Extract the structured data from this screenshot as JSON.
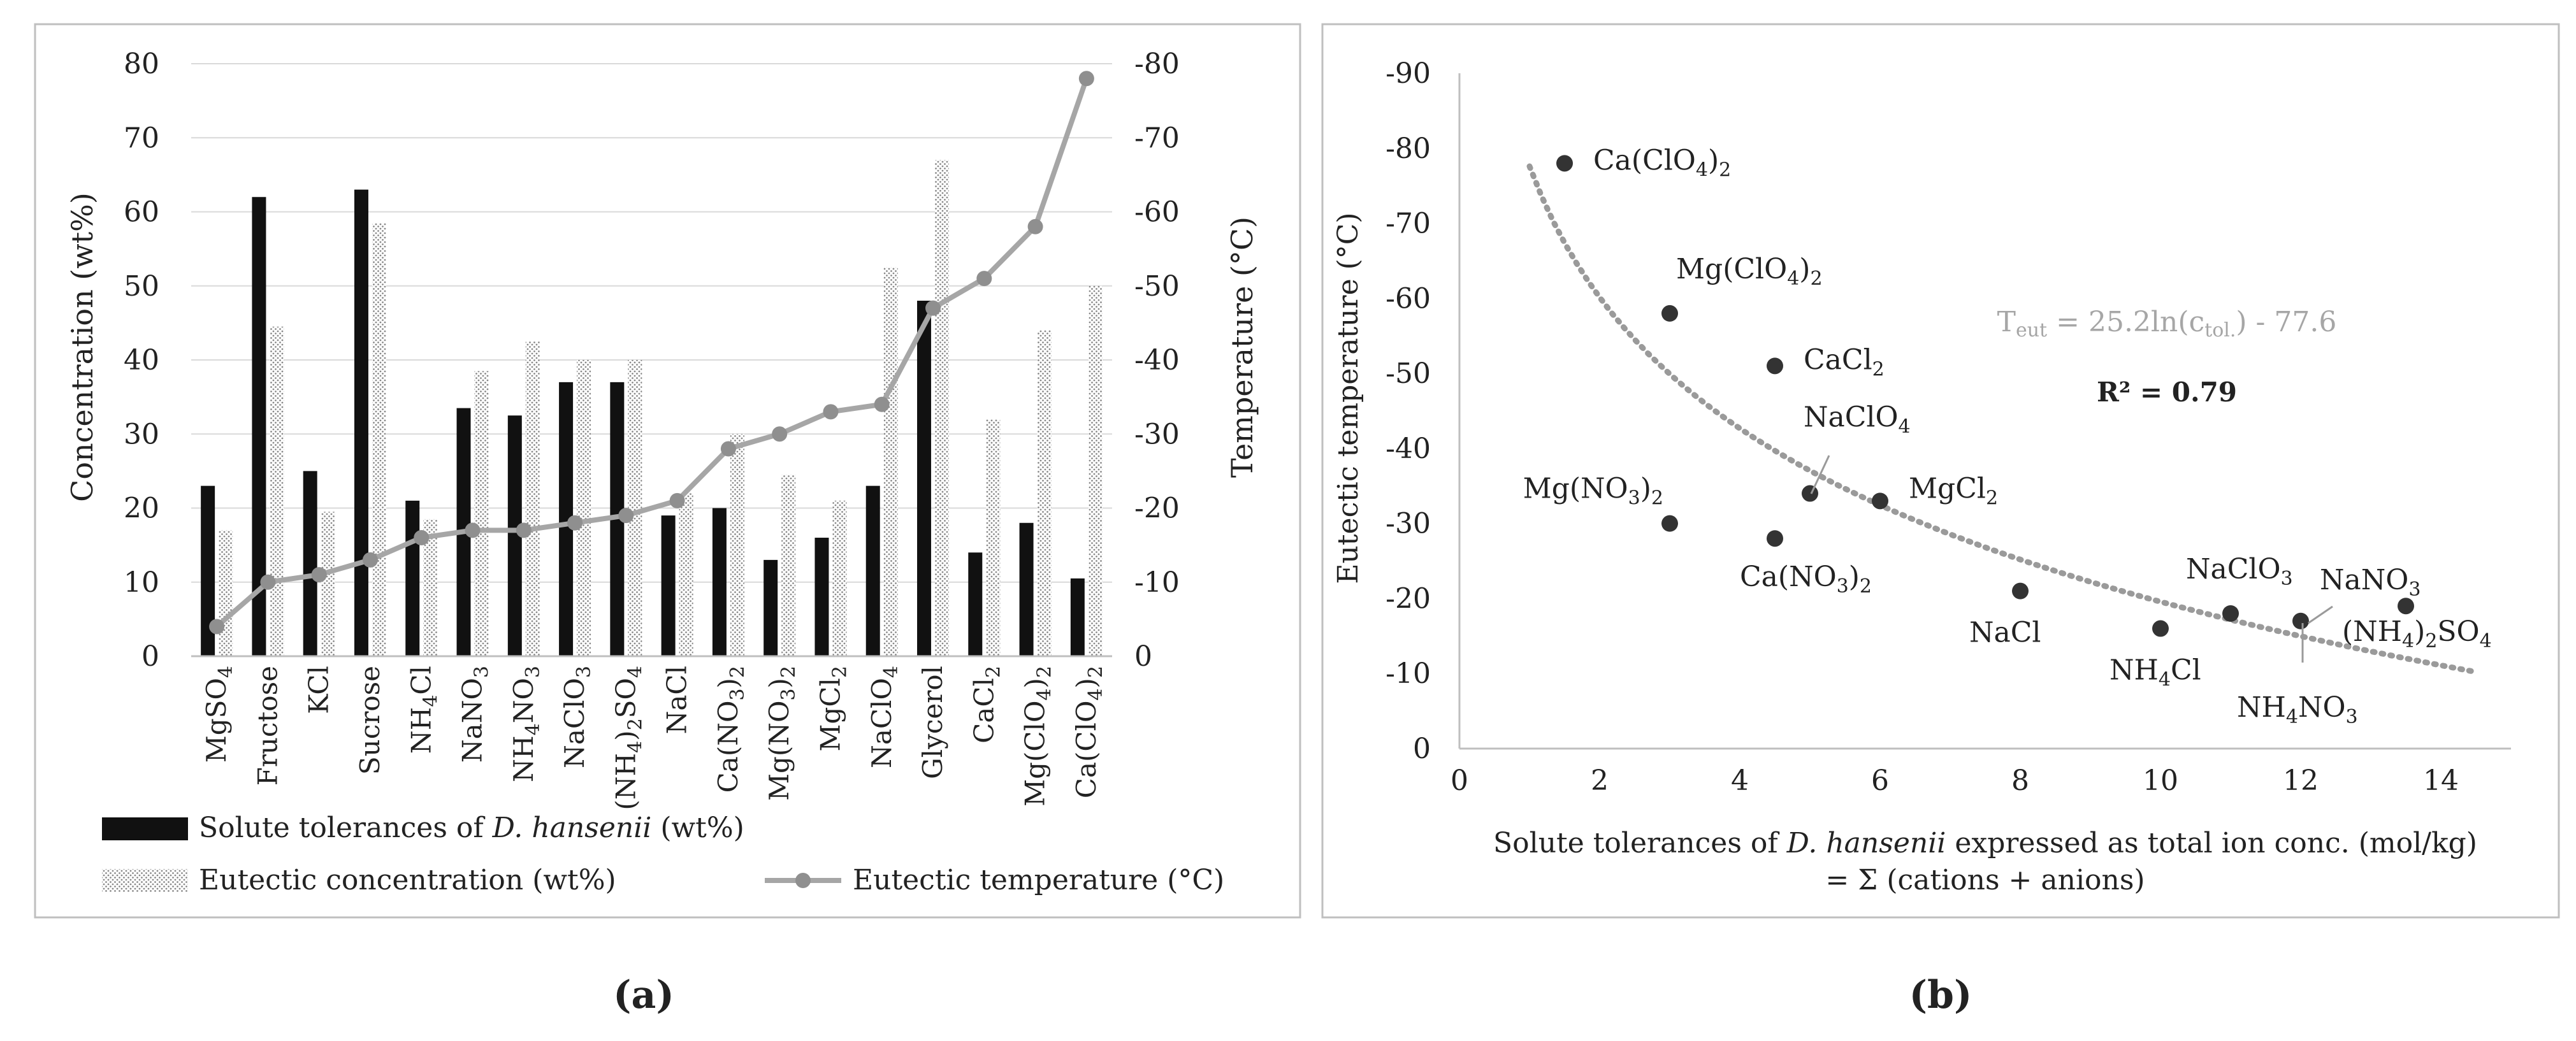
{
  "panel_a": {
    "label": "(a)",
    "chart_data": {
      "type": "bar",
      "title": "",
      "xlabel": "",
      "ylabel_left": "Concentration (wt%)",
      "ylabel_right": "Temperature (°C)",
      "ylim_left": [
        0,
        80
      ],
      "ylim_right": [
        0,
        -80
      ],
      "yticks_left": [
        "0",
        "10",
        "20",
        "30",
        "40",
        "50",
        "60",
        "70",
        "80"
      ],
      "yticks_right": [
        "0",
        "-10",
        "-20",
        "-30",
        "-40",
        "-50",
        "-60",
        "-70",
        "-80"
      ],
      "categories": [
        "MgSO4",
        "Fructose",
        "KCl",
        "Sucrose",
        "NH4Cl",
        "NaNO3",
        "NH4NO3",
        "NaClO3",
        "(NH4)2SO4",
        "NaCl",
        "Ca(NO3)2",
        "Mg(NO3)2",
        "MgCl2",
        "NaClO4",
        "Glycerol",
        "CaCl2",
        "Mg(ClO4)2",
        "Ca(ClO4)2"
      ],
      "series": [
        {
          "name": "Solute tolerances of D. hansenii (wt%)",
          "kind": "bar",
          "color": "#111111",
          "axis": "left",
          "values": [
            23,
            62,
            25,
            63,
            21,
            33.5,
            32.5,
            37,
            37,
            19,
            20,
            13,
            16,
            23,
            48,
            14,
            18,
            10.5
          ]
        },
        {
          "name": "Eutectic concentration (wt%)",
          "kind": "bar",
          "color": "#bdbdbd",
          "pattern": "dotted",
          "axis": "left",
          "values": [
            17,
            44.5,
            19.5,
            58.5,
            18.5,
            38.5,
            42.5,
            40,
            40,
            22,
            30,
            24.5,
            21,
            52.5,
            67,
            32,
            44,
            50
          ]
        },
        {
          "name": "Eutectic temperature (°C)",
          "kind": "line",
          "color": "#a6a6a6",
          "axis": "right",
          "values": [
            -4,
            -10,
            -11,
            -13,
            -16,
            -17,
            -17,
            -18,
            -19,
            -21,
            -28,
            -30,
            -33,
            -34,
            -47,
            -51,
            -58,
            -78
          ]
        }
      ],
      "legend": {
        "solute_prefix": "Solute tolerances of ",
        "solute_species": "D. hansenii",
        "solute_suffix": " (wt%)",
        "eutectic_conc": "Eutectic concentration (wt%)",
        "eutectic_temp": "Eutectic temperature (°C)",
        "placement": "bottom"
      }
    }
  },
  "panel_b": {
    "label": "(b)",
    "chart_data": {
      "type": "scatter",
      "title": "",
      "xlabel_prefix": "Solute tolerances of ",
      "xlabel_species": "D. hansenii",
      "xlabel_suffix": " expressed as total ion conc. (mol/kg)",
      "xlabel_line2": "= Σ (cations + anions)",
      "ylabel": "Eutectic temperature (°C)",
      "xlim": [
        0,
        15
      ],
      "ylim": [
        0,
        -90
      ],
      "xticks": [
        "0",
        "2",
        "4",
        "6",
        "8",
        "10",
        "12",
        "14"
      ],
      "yticks": [
        "0",
        "-10",
        "-20",
        "-30",
        "-40",
        "-50",
        "-60",
        "-70",
        "-80",
        "-90"
      ],
      "points": [
        {
          "label": "Ca(ClO4)2",
          "x": 1.5,
          "y": -78
        },
        {
          "label": "Mg(ClO4)2",
          "x": 3,
          "y": -58
        },
        {
          "label": "Mg(NO3)2",
          "x": 3,
          "y": -30
        },
        {
          "label": "CaCl2",
          "x": 4.5,
          "y": -51
        },
        {
          "label": "Ca(NO3)2",
          "x": 4.5,
          "y": -28
        },
        {
          "label": "NaClO4",
          "x": 5,
          "y": -34
        },
        {
          "label": "MgCl2",
          "x": 6,
          "y": -33
        },
        {
          "label": "NaCl",
          "x": 8,
          "y": -21
        },
        {
          "label": "NH4Cl",
          "x": 10,
          "y": -16
        },
        {
          "label": "NaClO3",
          "x": 11,
          "y": -18
        },
        {
          "label": "NH4NO3",
          "x": 12,
          "y": -17
        },
        {
          "label": "NaNO3",
          "x": 12,
          "y": -17
        },
        {
          "label": "(NH4)2SO4",
          "x": 13.5,
          "y": -19
        }
      ],
      "trendline": {
        "type": "log",
        "a": 25.2,
        "b": -77.6,
        "x_range": [
          1,
          14.5
        ],
        "style": "dotted",
        "color": "#9a9a9a"
      },
      "equation": {
        "prefix": "T",
        "sub1": "eut",
        "mid": " = 25.2ln(c",
        "sub2": "tol.",
        "suffix": ") - 77.6"
      },
      "r_squared": "R² = 0.79"
    }
  }
}
